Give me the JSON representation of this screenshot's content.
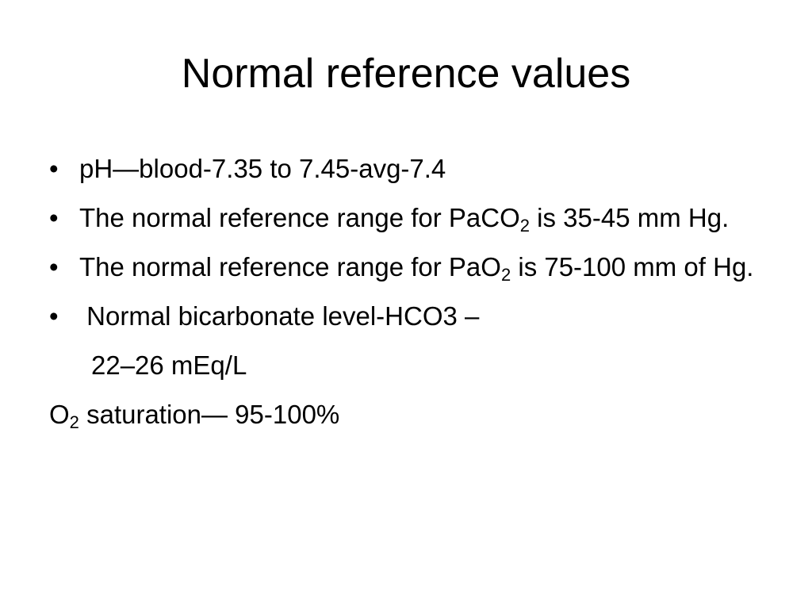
{
  "slide": {
    "title": "Normal reference values",
    "items": [
      {
        "text": "pH—blood-7.35 to 7.45-avg-7.4"
      },
      {
        "pre": "The normal reference range for PaCO",
        "sub": "2",
        "post": " is 35-45 mm Hg."
      },
      {
        "pre": "The normal reference range for PaO",
        "sub": "2",
        "post": " is 75-100 mm of Hg."
      },
      {
        "text": " Normal bicarbonate level-HCO3 –"
      }
    ],
    "continuation": "22–26 mEq/L",
    "last_line": {
      "pre": "O",
      "sub": "2",
      "post": " saturation— 95-100%"
    },
    "bullet_glyph": "•"
  }
}
